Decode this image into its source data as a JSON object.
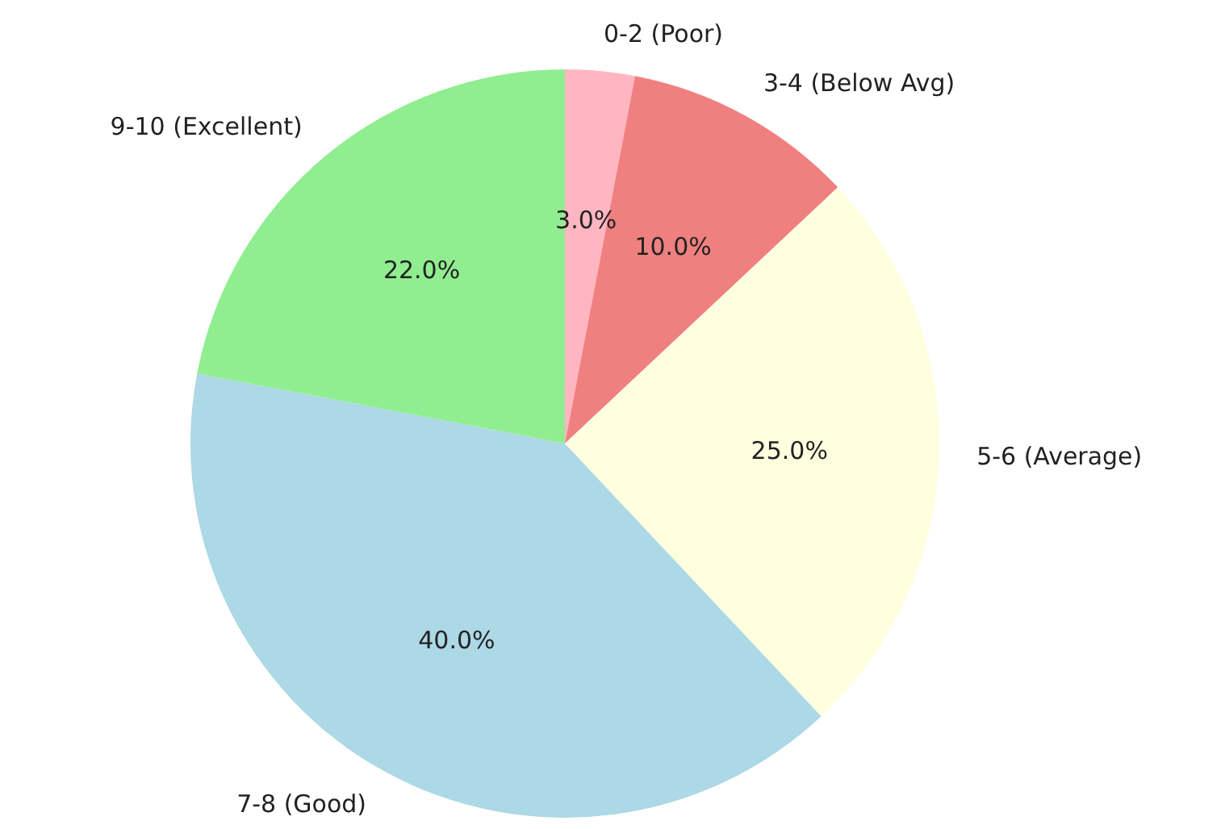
{
  "chart_data": {
    "type": "pie",
    "categories": [
      "0-2 (Poor)",
      "3-4 (Below Avg)",
      "5-6 (Average)",
      "7-8 (Good)",
      "9-10 (Excellent)"
    ],
    "values": [
      3,
      10,
      25,
      40,
      22
    ],
    "colors": [
      "#ffb6c1",
      "#f08080",
      "#ffffe0",
      "#add8e6",
      "#90ee90"
    ],
    "value_labels": [
      "3.0%",
      "10.0%",
      "25.0%",
      "40.0%",
      "22.0%"
    ]
  }
}
